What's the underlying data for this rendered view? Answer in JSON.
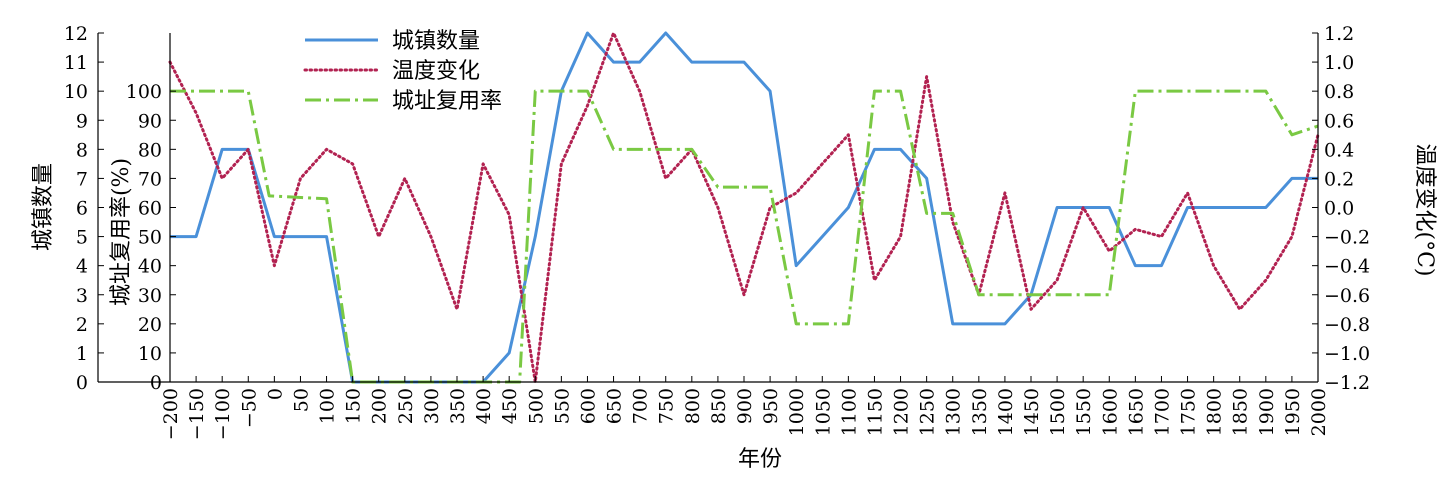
{
  "chart_data": {
    "type": "line",
    "xlabel": "年份",
    "x_ticks": [
      -200,
      -150,
      -100,
      -50,
      0,
      50,
      100,
      150,
      200,
      250,
      300,
      350,
      400,
      450,
      500,
      550,
      600,
      650,
      700,
      750,
      800,
      850,
      900,
      950,
      1000,
      1050,
      1100,
      1150,
      1200,
      1250,
      1300,
      1350,
      1400,
      1450,
      1500,
      1550,
      1600,
      1650,
      1700,
      1750,
      1800,
      1850,
      1900,
      1950,
      2000
    ],
    "x_tick_labels": [
      "−200",
      "−150",
      "−100",
      "−50",
      "0",
      "50",
      "100",
      "150",
      "200",
      "250",
      "300",
      "350",
      "400",
      "450",
      "500",
      "550",
      "600",
      "650",
      "700",
      "750",
      "800",
      "850",
      "900",
      "950",
      "1000",
      "1050",
      "1100",
      "1150",
      "1200",
      "1250",
      "1300",
      "1350",
      "1400",
      "1450",
      "1500",
      "1550",
      "1600",
      "1650",
      "1700",
      "1750",
      "1800",
      "1850",
      "1900",
      "1950",
      "2000"
    ],
    "xlim": [
      -200,
      2000
    ],
    "y_count": {
      "label": "城镇数量",
      "lim": [
        0,
        12
      ],
      "ticks": [
        0,
        1,
        2,
        3,
        4,
        5,
        6,
        7,
        8,
        9,
        10,
        11,
        12
      ],
      "tick_labels": [
        "0",
        "1",
        "2",
        "3",
        "4",
        "5",
        "6",
        "7",
        "8",
        "9",
        "10",
        "11",
        "12"
      ]
    },
    "y_rate": {
      "label": "城址复用率(%)",
      "lim": [
        0,
        120
      ],
      "ticks": [
        0,
        10,
        20,
        30,
        40,
        50,
        60,
        70,
        80,
        90,
        100
      ],
      "tick_labels": [
        "0",
        "10",
        "20",
        "30",
        "40",
        "50",
        "60",
        "70",
        "80",
        "90",
        "100"
      ]
    },
    "y_temp": {
      "label": "温度变化(°C)",
      "lim": [
        -1.2,
        1.2
      ],
      "ticks": [
        -1.2,
        -1.0,
        -0.8,
        -0.6,
        -0.4,
        -0.2,
        0.0,
        0.2,
        0.4,
        0.6,
        0.8,
        1.0,
        1.2
      ],
      "tick_labels": [
        "−1.2",
        "−1.0",
        "−0.8",
        "−0.6",
        "−0.4",
        "−0.2",
        "0.0",
        "0.2",
        "0.4",
        "0.6",
        "0.8",
        "1.0",
        "1.2"
      ]
    },
    "series": [
      {
        "name": "城镇数量",
        "axis": "count",
        "color": "#4a90d9",
        "style": "solid",
        "x": [
          -200,
          -150,
          -100,
          -50,
          0,
          50,
          100,
          150,
          200,
          250,
          300,
          350,
          400,
          450,
          500,
          550,
          600,
          650,
          700,
          750,
          800,
          850,
          900,
          950,
          1000,
          1050,
          1100,
          1150,
          1200,
          1250,
          1300,
          1350,
          1400,
          1450,
          1500,
          1550,
          1600,
          1650,
          1700,
          1750,
          1800,
          1850,
          1900,
          1950,
          2000
        ],
        "values": [
          5,
          5,
          8,
          8,
          5,
          5,
          5,
          0,
          0,
          0,
          0,
          0,
          0,
          1,
          5,
          10,
          12,
          11,
          11,
          12,
          11,
          11,
          11,
          10,
          4,
          5,
          6,
          8,
          8,
          7,
          2,
          2,
          2,
          3,
          6,
          6,
          6,
          4,
          4,
          6,
          6,
          6,
          6,
          7,
          7
        ]
      },
      {
        "name": "温度变化",
        "axis": "temp",
        "color": "#b22251",
        "style": "dotted",
        "x": [
          -200,
          -150,
          -100,
          -50,
          0,
          50,
          100,
          150,
          200,
          250,
          300,
          350,
          400,
          450,
          500,
          550,
          600,
          650,
          700,
          750,
          800,
          850,
          900,
          950,
          1000,
          1050,
          1100,
          1150,
          1200,
          1250,
          1300,
          1350,
          1400,
          1450,
          1500,
          1550,
          1600,
          1650,
          1700,
          1750,
          1800,
          1850,
          1900,
          1950,
          2000
        ],
        "values": [
          1.0,
          0.65,
          0.2,
          0.4,
          -0.4,
          0.2,
          0.4,
          0.3,
          -0.2,
          0.2,
          -0.2,
          -0.7,
          0.3,
          -0.05,
          -1.2,
          0.3,
          0.7,
          1.2,
          0.8,
          0.2,
          0.4,
          0.0,
          -0.6,
          0.0,
          0.1,
          0.3,
          0.5,
          -0.5,
          -0.2,
          0.9,
          -0.1,
          -0.6,
          0.1,
          -0.7,
          -0.5,
          0.0,
          -0.3,
          -0.15,
          -0.2,
          0.1,
          -0.4,
          -0.7,
          -0.5,
          -0.2,
          0.5
        ]
      },
      {
        "name": "城址复用率",
        "axis": "rate",
        "color": "#7ac943",
        "style": "dashdot",
        "x": [
          -200,
          -50,
          -10,
          100,
          150,
          450,
          470,
          500,
          600,
          650,
          750,
          800,
          850,
          950,
          1000,
          1100,
          1150,
          1200,
          1250,
          1300,
          1350,
          1400,
          1450,
          1500,
          1600,
          1650,
          1700,
          1750,
          1800,
          1900,
          1950,
          2000
        ],
        "values": [
          100,
          100,
          64,
          63,
          0,
          0,
          0,
          100,
          100,
          80,
          80,
          80,
          67,
          67,
          20,
          20,
          100,
          100,
          58,
          58,
          30,
          30,
          30,
          30,
          30,
          100,
          100,
          100,
          100,
          100,
          85,
          88
        ]
      }
    ],
    "legend": {
      "position": "top-left-inside",
      "entries": [
        "城镇数量",
        "温度变化",
        "城址复用率"
      ]
    }
  }
}
